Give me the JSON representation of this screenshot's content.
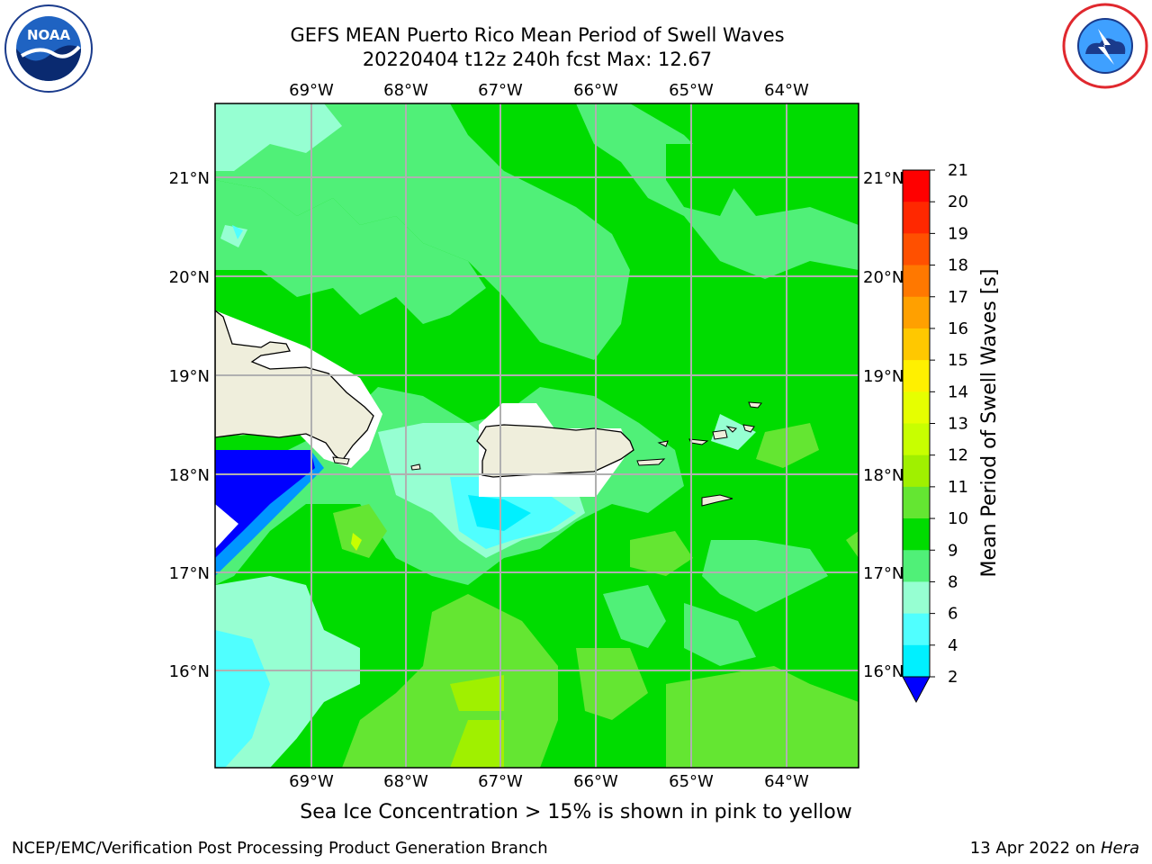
{
  "header": {
    "title_line1": "GEFS MEAN Puerto Rico Mean Period of Swell Waves",
    "title_line2": "20220404 t12z 240h fcst   Max: 12.67"
  },
  "logos": {
    "noaa": "noaa-logo",
    "nws": "nws-logo"
  },
  "map": {
    "top_lon_labels": [
      "69°W",
      "68°W",
      "67°W",
      "66°W",
      "65°W",
      "64°W"
    ],
    "bottom_lon_labels": [
      "69°W",
      "68°W",
      "67°W",
      "66°W",
      "65°W",
      "64°W"
    ],
    "left_lat_labels": [
      "21°N",
      "20°N",
      "19°N",
      "18°N",
      "17°N",
      "16°N"
    ],
    "right_lat_labels": [
      "21°N",
      "20°N",
      "19°N",
      "18°N",
      "17°N",
      "16°N"
    ],
    "ocean_color": "#00dc00",
    "land_color": "#efeedc"
  },
  "colorbar": {
    "label": "Mean Period of Swell Waves [s]",
    "ticks": [
      "21",
      "20",
      "19",
      "18",
      "17",
      "16",
      "15",
      "14",
      "13",
      "12",
      "11",
      "10",
      "9",
      "8",
      "6",
      "4",
      "2"
    ],
    "colors": [
      "#ff0000",
      "#ff2800",
      "#ff5000",
      "#ff7800",
      "#ffa000",
      "#ffc800",
      "#fff000",
      "#e6ff00",
      "#c8ff00",
      "#a0f000",
      "#64e632",
      "#00dc00",
      "#50f078",
      "#96ffd2",
      "#50ffff",
      "#00f0ff",
      "#0096ff",
      "#0000ff"
    ]
  },
  "notes": {
    "ice": "Sea Ice Concentration > 15% is shown in pink to yellow"
  },
  "footer": {
    "left": "NCEP/EMC/Verification Post Processing Product Generation Branch",
    "date": "13 Apr 2022 on ",
    "host": "Hera"
  }
}
